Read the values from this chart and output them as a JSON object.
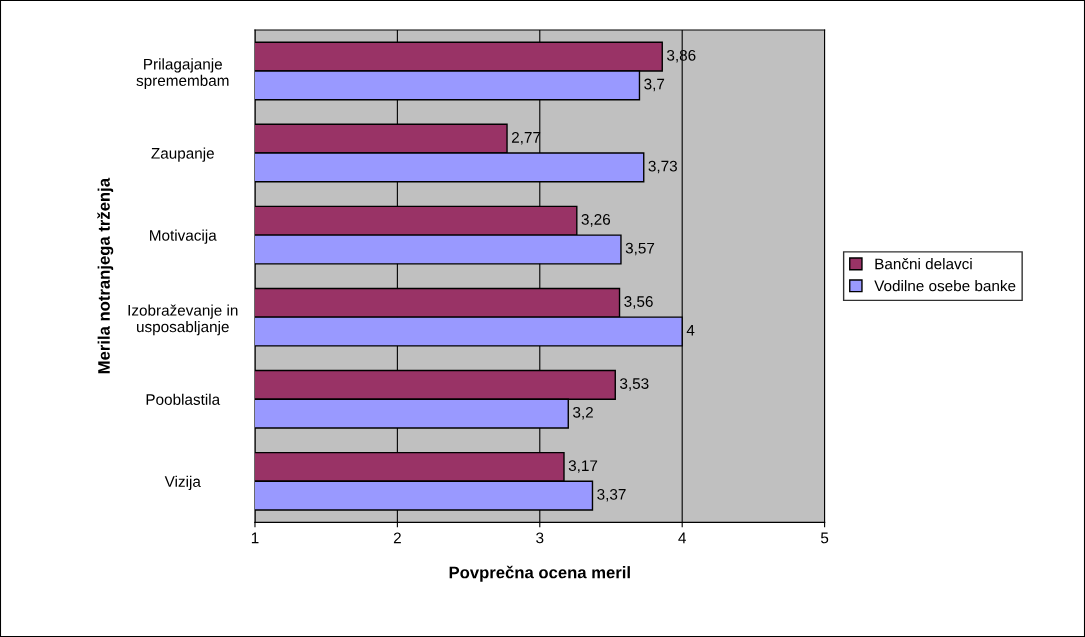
{
  "chart_data": {
    "type": "bar",
    "orientation": "horizontal",
    "xlabel": "Povprečna ocena meril",
    "ylabel": "Merila notranjega trženja",
    "categories": [
      "Prilagajanje\nspremembam",
      "Zaupanje",
      "Motivacija",
      "Izobraževanje in\nusposabljanje",
      "Pooblastila",
      "Vizija"
    ],
    "series": [
      {
        "name": "Bančni delavci",
        "color": "#993366",
        "values": [
          3.86,
          2.77,
          3.26,
          3.56,
          3.53,
          3.17
        ],
        "value_labels": [
          "3,86",
          "2,77",
          "3,26",
          "3,56",
          "3,53",
          "3,17"
        ]
      },
      {
        "name": "Vodilne osebe banke",
        "color": "#9999ff",
        "values": [
          3.7,
          3.73,
          3.57,
          4,
          3.2,
          3.37
        ],
        "value_labels": [
          "3,7",
          "3,73",
          "3,57",
          "4",
          "3,2",
          "3,37"
        ]
      }
    ],
    "xlim": [
      1,
      5
    ],
    "xticks": [
      1,
      2,
      3,
      4,
      5
    ],
    "grid": "x",
    "legend": "right"
  }
}
